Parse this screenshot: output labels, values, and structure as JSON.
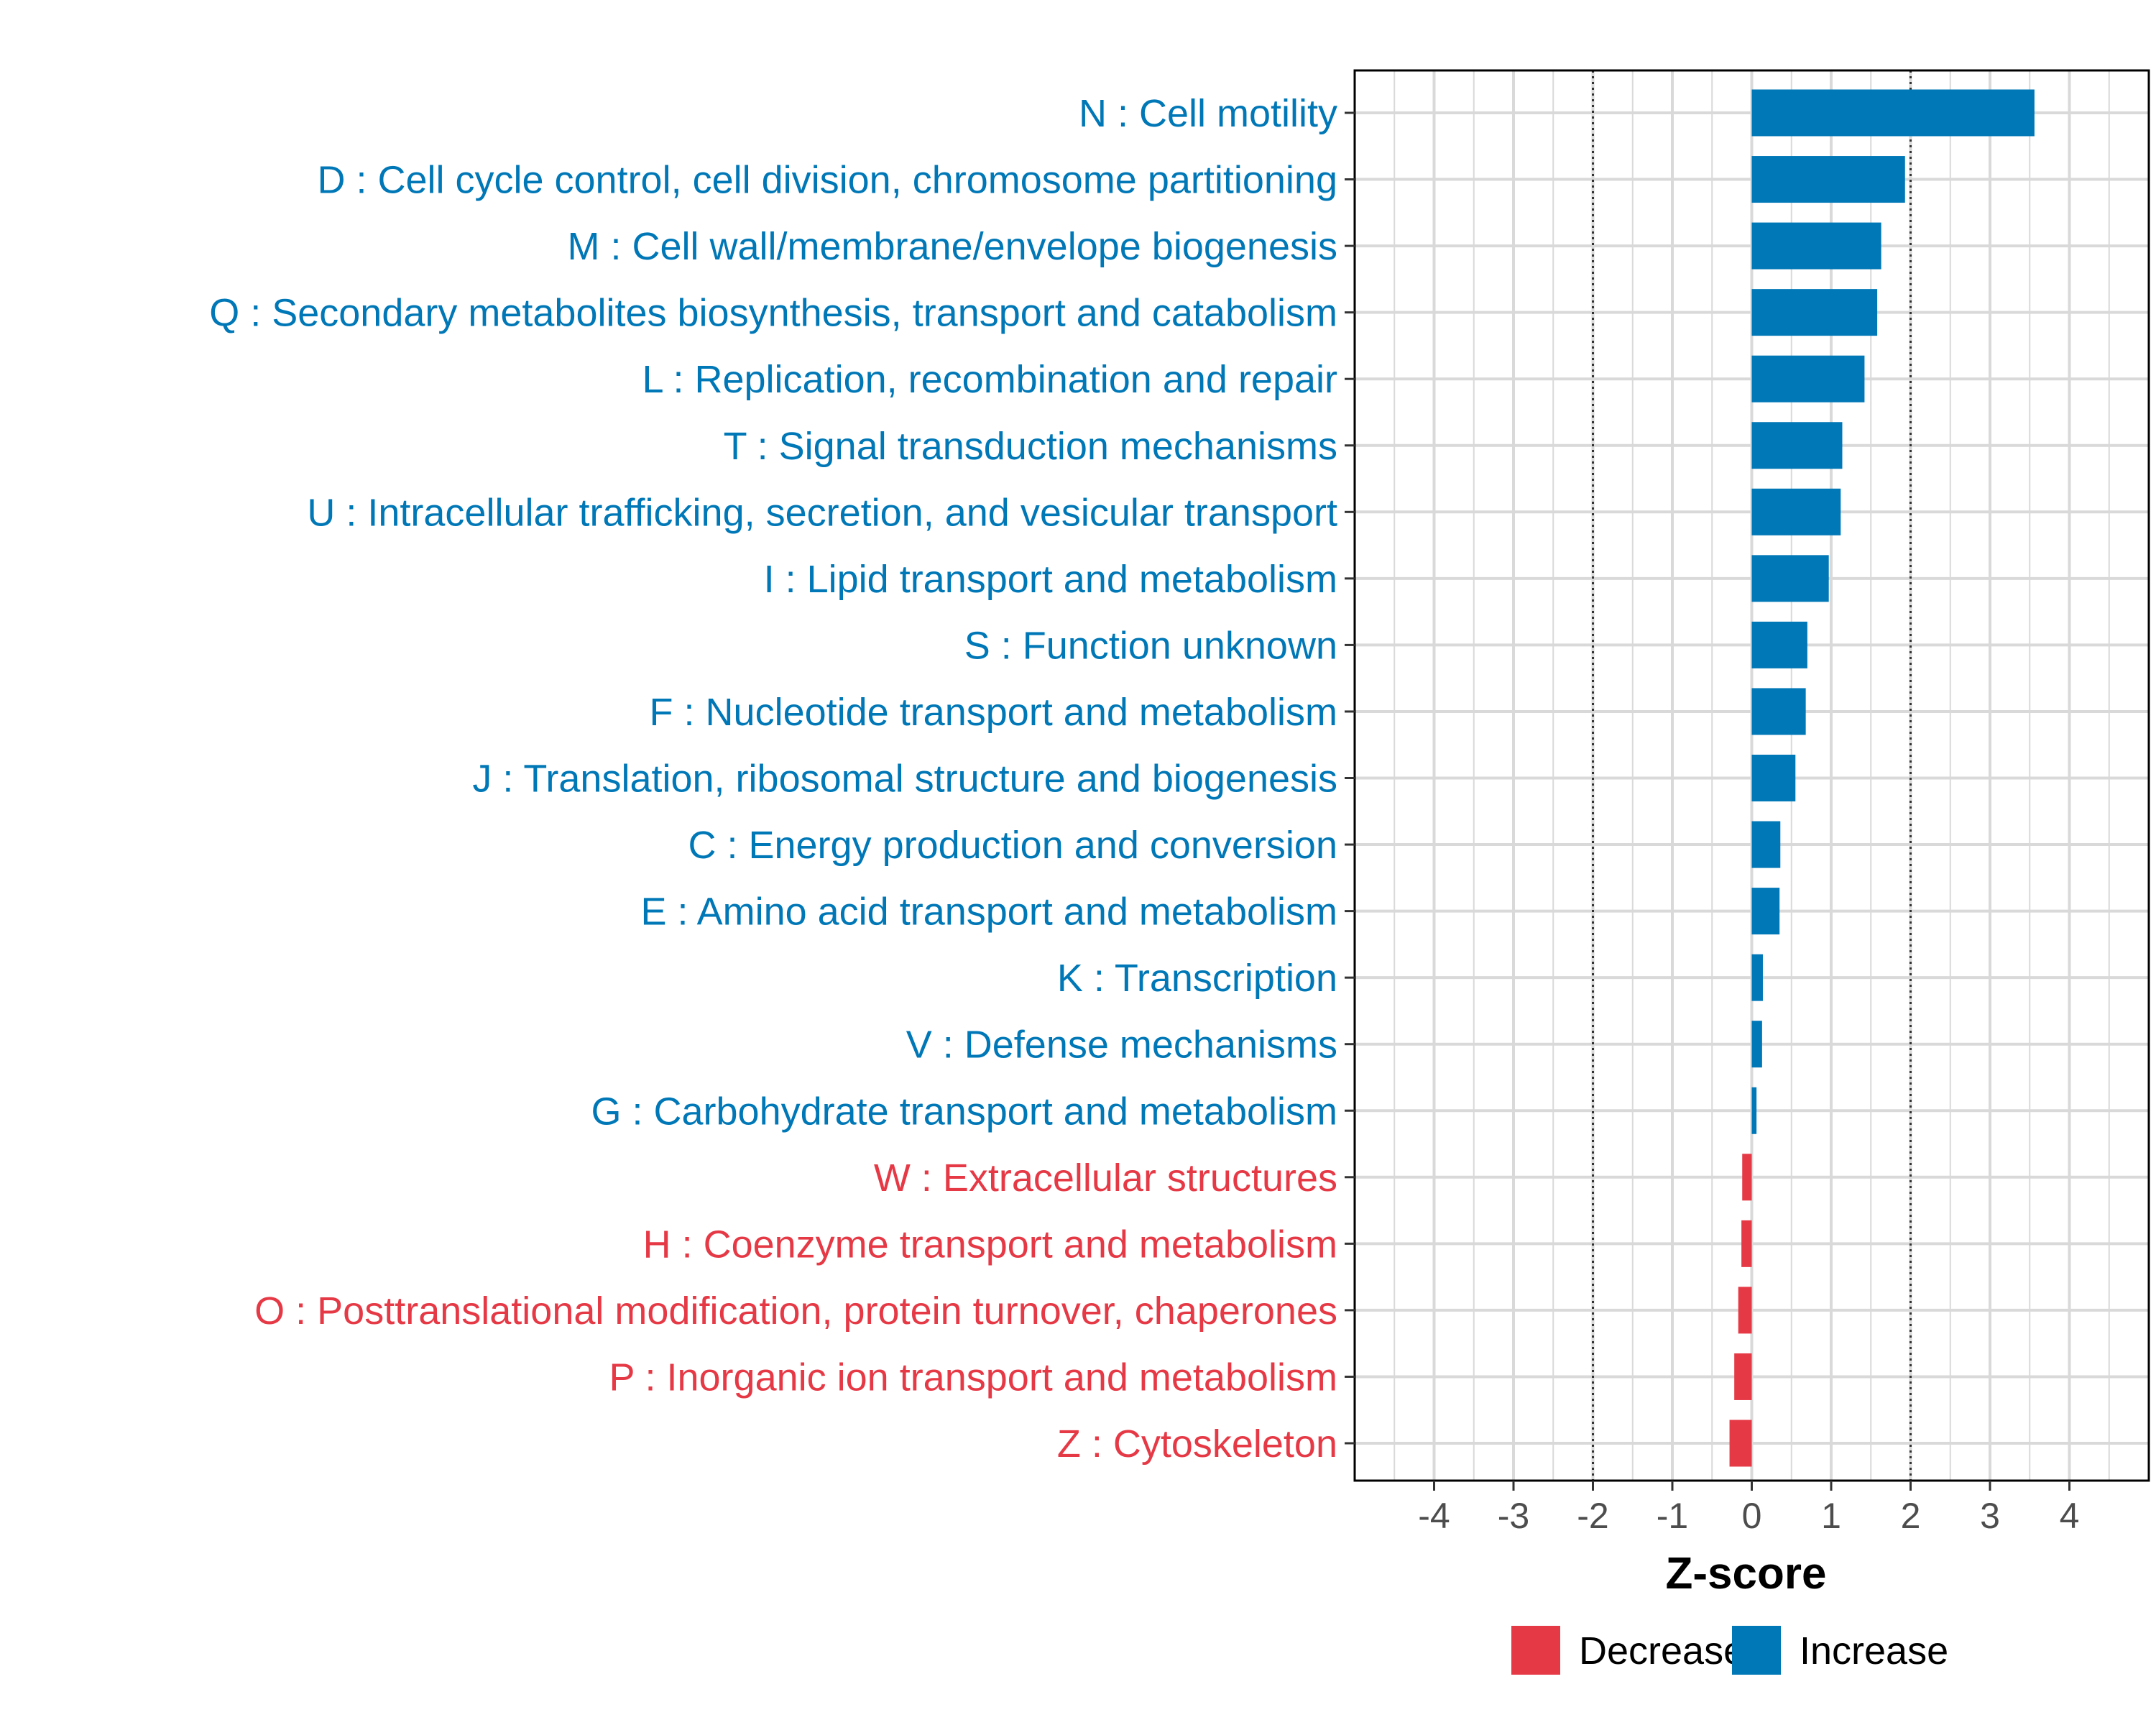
{
  "chart_data": {
    "type": "bar",
    "orientation": "horizontal",
    "title": "",
    "xlabel": "Z-score",
    "ylabel": "",
    "xlim": [
      -5,
      5
    ],
    "xticks": [
      -4,
      -3,
      -2,
      -1,
      0,
      1,
      2,
      3,
      4
    ],
    "reference_lines": [
      -2,
      2
    ],
    "grid": true,
    "legend_position": "bottom",
    "colors": {
      "Decrease": "#E63946",
      "Increase": "#0077B6"
    },
    "legend": [
      {
        "name": "Decrease",
        "color": "#E63946"
      },
      {
        "name": "Increase",
        "color": "#0077B6"
      }
    ],
    "categories": [
      "N : Cell motility",
      "D : Cell cycle control, cell division, chromosome partitioning",
      "M : Cell wall/membrane/envelope biogenesis",
      "Q : Secondary metabolites biosynthesis, transport and catabolism",
      "L : Replication, recombination and repair",
      "T : Signal transduction mechanisms",
      "U : Intracellular trafficking, secretion, and vesicular transport",
      "I : Lipid transport and metabolism",
      "S : Function unknown",
      "F : Nucleotide transport and metabolism",
      "J : Translation, ribosomal structure and biogenesis",
      "C : Energy production and conversion",
      "E : Amino acid transport and metabolism",
      "K : Transcription",
      "V : Defense mechanisms",
      "G : Carbohydrate transport and metabolism",
      "W : Extracellular structures",
      "H : Coenzyme transport and metabolism",
      "O : Posttranslational modification, protein turnover, chaperones",
      "P : Inorganic ion transport and metabolism",
      "Z : Cytoskeleton"
    ],
    "values": [
      3.56,
      1.93,
      1.63,
      1.58,
      1.42,
      1.14,
      1.12,
      0.97,
      0.7,
      0.68,
      0.55,
      0.36,
      0.35,
      0.14,
      0.13,
      0.06,
      -0.12,
      -0.13,
      -0.17,
      -0.22,
      -0.28
    ],
    "groups": [
      "Increase",
      "Increase",
      "Increase",
      "Increase",
      "Increase",
      "Increase",
      "Increase",
      "Increase",
      "Increase",
      "Increase",
      "Increase",
      "Increase",
      "Increase",
      "Increase",
      "Increase",
      "Increase",
      "Decrease",
      "Decrease",
      "Decrease",
      "Decrease",
      "Decrease"
    ]
  }
}
